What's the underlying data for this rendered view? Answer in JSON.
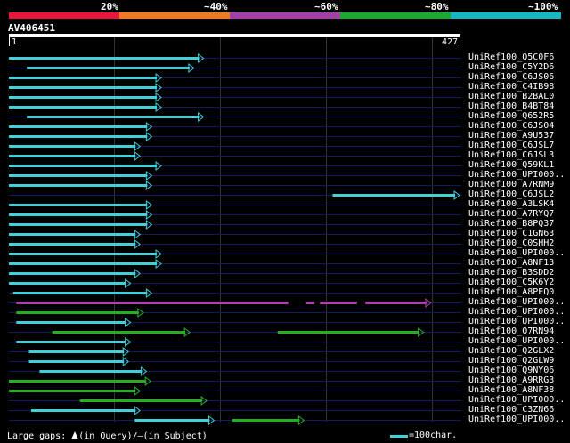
{
  "header": {
    "percent_labels": [
      "20%",
      "~40%",
      "~60%",
      "~80%",
      "~100%"
    ],
    "colors": [
      "#e8173a",
      "#ef7a22",
      "#a23fa8",
      "#1aa830",
      "#16b7c2"
    ]
  },
  "query": {
    "title": "AV406451",
    "length": 427,
    "start_label": "1",
    "end_label": "427"
  },
  "colors": {
    "cyan": "#3fd0d8",
    "green": "#22b022",
    "purple": "#b040b0",
    "row_line": "#121a5a"
  },
  "hits": [
    {
      "label": "UniRef100_Q5C0F6",
      "segs": [
        {
          "s": 1,
          "e": 185,
          "c": "cyan"
        }
      ]
    },
    {
      "label": "UniRef100_C5Y2D6",
      "segs": [
        {
          "s": 18,
          "e": 176,
          "c": "cyan"
        }
      ]
    },
    {
      "label": "UniRef100_C6JS06",
      "segs": [
        {
          "s": 1,
          "e": 145,
          "c": "cyan"
        }
      ]
    },
    {
      "label": "UniRef100_C4IB98",
      "segs": [
        {
          "s": 1,
          "e": 145,
          "c": "cyan"
        }
      ]
    },
    {
      "label": "UniRef100_B2BAL0",
      "segs": [
        {
          "s": 1,
          "e": 145,
          "c": "cyan"
        }
      ]
    },
    {
      "label": "UniRef100_B4BT84",
      "segs": [
        {
          "s": 1,
          "e": 145,
          "c": "cyan"
        }
      ]
    },
    {
      "label": "UniRef100_Q652R5",
      "segs": [
        {
          "s": 18,
          "e": 185,
          "c": "cyan"
        }
      ]
    },
    {
      "label": "UniRef100_C6JS04",
      "segs": [
        {
          "s": 1,
          "e": 136,
          "c": "cyan"
        }
      ]
    },
    {
      "label": "UniRef100_A9U537",
      "segs": [
        {
          "s": 1,
          "e": 136,
          "c": "cyan"
        }
      ]
    },
    {
      "label": "UniRef100_C6JSL7",
      "segs": [
        {
          "s": 1,
          "e": 125,
          "c": "cyan"
        }
      ]
    },
    {
      "label": "UniRef100_C6JSL3",
      "segs": [
        {
          "s": 1,
          "e": 125,
          "c": "cyan"
        }
      ]
    },
    {
      "label": "UniRef100_Q59KL1",
      "segs": [
        {
          "s": 1,
          "e": 145,
          "c": "cyan"
        }
      ]
    },
    {
      "label": "UniRef100_UPI000..",
      "segs": [
        {
          "s": 1,
          "e": 136,
          "c": "cyan"
        }
      ]
    },
    {
      "label": "UniRef100_A7RNM9",
      "segs": [
        {
          "s": 1,
          "e": 136,
          "c": "cyan"
        }
      ]
    },
    {
      "label": "UniRef100_C6JSL2",
      "segs": [
        {
          "s": 307,
          "e": 427,
          "c": "cyan"
        }
      ]
    },
    {
      "label": "UniRef100_A3LSK4",
      "segs": [
        {
          "s": 1,
          "e": 136,
          "c": "cyan"
        }
      ]
    },
    {
      "label": "UniRef100_A7RYQ7",
      "segs": [
        {
          "s": 1,
          "e": 136,
          "c": "cyan"
        }
      ]
    },
    {
      "label": "UniRef100_B8PQ37",
      "segs": [
        {
          "s": 1,
          "e": 136,
          "c": "cyan"
        }
      ]
    },
    {
      "label": "UniRef100_C1GN63",
      "segs": [
        {
          "s": 1,
          "e": 125,
          "c": "cyan"
        }
      ]
    },
    {
      "label": "UniRef100_C0SHH2",
      "segs": [
        {
          "s": 1,
          "e": 125,
          "c": "cyan"
        }
      ]
    },
    {
      "label": "UniRef100_UPI000..",
      "segs": [
        {
          "s": 1,
          "e": 145,
          "c": "cyan"
        }
      ]
    },
    {
      "label": "UniRef100_A8NF13",
      "segs": [
        {
          "s": 1,
          "e": 145,
          "c": "cyan"
        }
      ]
    },
    {
      "label": "UniRef100_B3SDD2",
      "segs": [
        {
          "s": 1,
          "e": 125,
          "c": "cyan"
        }
      ]
    },
    {
      "label": "UniRef100_C5K6Y2",
      "segs": [
        {
          "s": 1,
          "e": 116,
          "c": "cyan"
        }
      ]
    },
    {
      "label": "UniRef100_A8PEQ0",
      "segs": [
        {
          "s": 5,
          "e": 136,
          "c": "cyan"
        }
      ]
    },
    {
      "label": "UniRef100_UPI000..",
      "segs": [
        {
          "s": 8,
          "e": 400,
          "c": "purple",
          "gaps": true
        }
      ]
    },
    {
      "label": "UniRef100_UPI000..",
      "segs": [
        {
          "s": 8,
          "e": 128,
          "c": "green"
        }
      ]
    },
    {
      "label": "UniRef100_UPI000..",
      "segs": [
        {
          "s": 8,
          "e": 116,
          "c": "cyan"
        }
      ]
    },
    {
      "label": "UniRef100_Q7RN94",
      "segs": [
        {
          "s": 42,
          "e": 172,
          "c": "green"
        },
        {
          "s": 255,
          "e": 393,
          "c": "green"
        }
      ]
    },
    {
      "label": "UniRef100_UPI000..",
      "segs": [
        {
          "s": 8,
          "e": 116,
          "c": "cyan"
        }
      ]
    },
    {
      "label": "UniRef100_Q2GLX2",
      "segs": [
        {
          "s": 20,
          "e": 114,
          "c": "cyan"
        }
      ]
    },
    {
      "label": "UniRef100_Q2GLW9",
      "segs": [
        {
          "s": 20,
          "e": 114,
          "c": "cyan"
        }
      ]
    },
    {
      "label": "UniRef100_Q9NY06",
      "segs": [
        {
          "s": 30,
          "e": 131,
          "c": "cyan"
        }
      ]
    },
    {
      "label": "UniRef100_A9RRG3",
      "segs": [
        {
          "s": 1,
          "e": 135,
          "c": "green"
        }
      ]
    },
    {
      "label": "UniRef100_A8NF38",
      "segs": [
        {
          "s": 1,
          "e": 125,
          "c": "green"
        }
      ]
    },
    {
      "label": "UniRef100_UPI000..",
      "segs": [
        {
          "s": 68,
          "e": 188,
          "c": "green"
        }
      ]
    },
    {
      "label": "UniRef100_C3ZN66",
      "segs": [
        {
          "s": 22,
          "e": 125,
          "c": "cyan"
        }
      ]
    },
    {
      "label": "UniRef100_UPI000..",
      "segs": [
        {
          "s": 120,
          "e": 195,
          "c": "cyan"
        },
        {
          "s": 212,
          "e": 280,
          "c": "green"
        }
      ]
    }
  ],
  "footer": {
    "gaps_prefix": "Large gaps:",
    "gaps_query": "(in Query)/",
    "gaps_dash": "—",
    "gaps_subject": "(in Subject)",
    "scale_text": "=100char."
  }
}
